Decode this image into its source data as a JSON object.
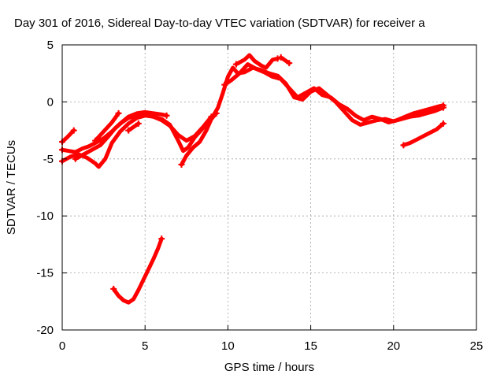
{
  "chart_data": {
    "type": "line",
    "title": "Day 301 of 2016, Sidereal Day-to-day VTEC variation (SDTVAR) for receiver a",
    "xlabel": "GPS time / hours",
    "ylabel": "SDTVAR / TECUs",
    "xlim": [
      0,
      25
    ],
    "ylim": [
      -20,
      5
    ],
    "xticks": [
      0,
      5,
      10,
      15,
      20,
      25
    ],
    "yticks": [
      5,
      0,
      -5,
      -10,
      -15,
      -20
    ],
    "grid": true,
    "legend": "none",
    "colors": {
      "series": "#ff0000",
      "axes": "#000000",
      "grid": "#a0a0a0"
    },
    "series": [
      {
        "x": [
          0.0,
          0.3,
          0.7
        ],
        "y": [
          -3.5,
          -3.1,
          -2.5
        ]
      },
      {
        "x": [
          0.0,
          0.4,
          0.8,
          1.2,
          1.6,
          2.0,
          2.5,
          3.0,
          3.5,
          4.0,
          4.5,
          5.0,
          5.5,
          6.0,
          6.3
        ],
        "y": [
          -4.2,
          -4.3,
          -4.4,
          -4.1,
          -3.9,
          -3.6,
          -3.2,
          -2.6,
          -1.9,
          -1.3,
          -1.0,
          -0.9,
          -1.0,
          -1.1,
          -1.2
        ]
      },
      {
        "x": [
          0.0,
          0.5,
          1.0,
          1.5,
          2.0,
          2.2,
          2.6,
          3.0,
          3.5,
          4.0,
          4.5,
          5.0,
          5.5,
          6.0,
          6.5,
          7.0,
          7.5,
          8.0,
          8.5,
          9.0
        ],
        "y": [
          -5.2,
          -4.8,
          -4.6,
          -4.9,
          -5.4,
          -5.7,
          -5.0,
          -3.6,
          -2.6,
          -1.9,
          -1.4,
          -1.2,
          -1.3,
          -1.6,
          -2.1,
          -2.9,
          -3.4,
          -3.0,
          -2.2,
          -1.3
        ]
      },
      {
        "x": [
          0.8,
          1.3,
          1.8,
          2.3,
          2.8,
          3.2,
          3.6,
          4.0,
          4.5,
          5.0,
          5.5,
          6.0,
          6.5,
          7.0,
          7.3,
          7.6,
          8.0,
          8.5,
          9.0,
          9.3
        ],
        "y": [
          -5.0,
          -4.6,
          -4.2,
          -3.8,
          -3.0,
          -2.3,
          -1.8,
          -1.4,
          -1.2,
          -1.1,
          -1.3,
          -1.5,
          -2.0,
          -3.4,
          -4.3,
          -4.0,
          -3.1,
          -2.3,
          -1.5,
          -1.0
        ]
      },
      {
        "x": [
          2.0,
          2.5,
          3.0,
          3.4
        ],
        "y": [
          -3.4,
          -2.6,
          -1.8,
          -1.0
        ]
      },
      {
        "x": [
          4.0,
          4.3,
          4.6
        ],
        "y": [
          -2.5,
          -2.2,
          -1.9
        ]
      },
      {
        "x": [
          7.2,
          7.5,
          7.9,
          8.3,
          8.7,
          9.0,
          9.4,
          9.7,
          10.0,
          10.3,
          10.6,
          11.0,
          11.5,
          12.0,
          12.5,
          13.0,
          13.5,
          14.0,
          14.5,
          15.0,
          15.5,
          16.0,
          16.5,
          17.0,
          17.5,
          18.0,
          18.5,
          19.0,
          19.5,
          20.0,
          20.5,
          21.0,
          21.5,
          22.0,
          22.5,
          23.0
        ],
        "y": [
          -5.5,
          -4.7,
          -4.0,
          -3.5,
          -2.5,
          -1.5,
          -0.5,
          0.8,
          2.2,
          3.0,
          2.5,
          2.6,
          3.0,
          2.8,
          2.5,
          2.3,
          1.6,
          0.4,
          0.2,
          0.9,
          1.2,
          0.6,
          0.0,
          -0.8,
          -1.6,
          -2.0,
          -1.8,
          -1.6,
          -1.5,
          -1.7,
          -1.5,
          -1.3,
          -1.2,
          -1.0,
          -0.8,
          -0.5
        ]
      },
      {
        "x": [
          9.8,
          10.2,
          10.7,
          11.2,
          11.7,
          12.2,
          12.7,
          13.2,
          13.7,
          14.2,
          14.7,
          15.2,
          15.7,
          16.2,
          16.7,
          17.2,
          17.7,
          18.2,
          18.7,
          19.2,
          19.7,
          20.2,
          20.7,
          21.2,
          21.7,
          22.2,
          22.7,
          23.0
        ],
        "y": [
          1.5,
          1.9,
          2.5,
          3.3,
          2.9,
          2.6,
          2.2,
          2.0,
          1.2,
          0.4,
          0.8,
          1.2,
          0.6,
          0.4,
          -0.2,
          -0.6,
          -1.2,
          -1.6,
          -1.3,
          -1.5,
          -1.8,
          -1.6,
          -1.3,
          -1.0,
          -0.8,
          -0.6,
          -0.4,
          -0.3
        ]
      },
      {
        "x": [
          10.5,
          11.0,
          11.3,
          11.6,
          12.0,
          12.3,
          12.7,
          13.0
        ],
        "y": [
          3.3,
          3.7,
          4.1,
          3.6,
          3.2,
          3.0,
          3.7,
          3.8
        ]
      },
      {
        "x": [
          13.2,
          13.4,
          13.7
        ],
        "y": [
          3.9,
          3.7,
          3.4
        ]
      },
      {
        "x": [
          20.6,
          21.0,
          21.4,
          21.8,
          22.2,
          22.6,
          23.0
        ],
        "y": [
          -3.8,
          -3.6,
          -3.3,
          -3.0,
          -2.7,
          -2.4,
          -1.9
        ]
      },
      {
        "x": [
          3.1,
          3.4,
          3.7,
          4.0,
          4.3,
          4.6,
          4.9,
          5.2,
          5.5,
          5.8,
          6.0
        ],
        "y": [
          -16.4,
          -17.0,
          -17.4,
          -17.6,
          -17.3,
          -16.5,
          -15.6,
          -14.7,
          -13.8,
          -12.8,
          -12.0
        ]
      }
    ]
  }
}
